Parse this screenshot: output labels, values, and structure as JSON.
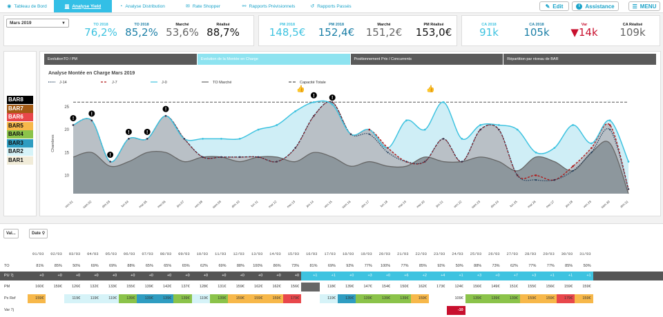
{
  "nav": {
    "items": [
      {
        "label": "Tableau de Bord",
        "icon": "dashboard-icon",
        "active": false
      },
      {
        "label": "Analyse Yield",
        "icon": "bar-chart-icon",
        "active": true
      },
      {
        "label": "Analyse Distribution",
        "icon": "pie-chart-icon",
        "active": false
      },
      {
        "label": "Rate Shopper",
        "icon": "ticket-icon",
        "active": false
      },
      {
        "label": "Rapports Prévisionnels",
        "icon": "binoculars-icon",
        "active": false
      },
      {
        "label": "Rapports Passés",
        "icon": "history-icon",
        "active": false
      }
    ],
    "edit_label": "Edit",
    "assist_label": "Assistance",
    "menu_label": "MENU"
  },
  "month_select": {
    "value": "Mars 2019"
  },
  "kpi_to": [
    {
      "label": "TO 2018",
      "value": "76,2%",
      "color": "cyan"
    },
    {
      "label": "TO 2018",
      "value": "85,2%",
      "color": "blue"
    },
    {
      "label": "Marché",
      "value": "53,6%",
      "color": "gray"
    },
    {
      "label": "Réalisé",
      "value": "88,7%",
      "color": "dark"
    }
  ],
  "kpi_pm": [
    {
      "label": "PM 2018",
      "value": "148,5€",
      "color": "cyan"
    },
    {
      "label": "PM 2018",
      "value": "152,4€",
      "color": "blue"
    },
    {
      "label": "Marché",
      "value": "151,2€",
      "color": "gray"
    },
    {
      "label": "PM Réalisé",
      "value": "153,0€",
      "color": "dark"
    }
  ],
  "kpi_ca": [
    {
      "label": "CA 2018",
      "value": "91k",
      "color": "cyan"
    },
    {
      "label": "CA 2018",
      "value": "105k",
      "color": "blue"
    },
    {
      "label": "Var",
      "value": "▼14k",
      "color": "red"
    },
    {
      "label": "CA Réalisé",
      "value": "109k",
      "color": "gray"
    }
  ],
  "bar_levels": [
    {
      "label": "BAR8",
      "color": "#000000",
      "text": "#ffffff"
    },
    {
      "label": "BAR7",
      "color": "#a35a14",
      "text": "#ffffff"
    },
    {
      "label": "BAR6",
      "color": "#e8474b",
      "text": "#ffffff"
    },
    {
      "label": "BAR5",
      "color": "#f7b84a",
      "text": "#111111"
    },
    {
      "label": "BAR4",
      "color": "#8bc34a",
      "text": "#111111"
    },
    {
      "label": "BAR3",
      "color": "#2f9dc1",
      "text": "#111111"
    },
    {
      "label": "BAR2",
      "color": "#d6f3f8",
      "text": "#111111"
    },
    {
      "label": "BAR1",
      "color": "#f1ecd9",
      "text": "#111111"
    }
  ],
  "tabs": [
    {
      "label": "EvolutionTO / PM",
      "active": false
    },
    {
      "label": "Evolution de la Montée en Charge",
      "active": true
    },
    {
      "label": "Positionnement Prix / Concurrents",
      "active": false
    },
    {
      "label": "Répartition par niveau de BAR",
      "active": false
    }
  ],
  "chart_data": {
    "type": "line",
    "title": "Analyse Montée en Charge Mars 2019",
    "ylabel": "Chambres",
    "xlabel": "",
    "ylim": [
      6,
      28
    ],
    "yticks": [
      10,
      15,
      20,
      25
    ],
    "capacity": 26,
    "categories": [
      "ven.01",
      "sam.02",
      "dim.03",
      "lun.04",
      "mar.05",
      "mer.06",
      "jeu.07",
      "ven.08",
      "sam.09",
      "dim.10",
      "lun.11",
      "mar.12",
      "mer.13",
      "jeu.14",
      "ven.15",
      "sam.16",
      "dim.17",
      "lun.18",
      "mar.19",
      "mer.20",
      "jeu.21",
      "ven.22",
      "sam.23",
      "dim.24",
      "lun.25",
      "mar.26",
      "mer.27",
      "jeu.28",
      "ven.29",
      "sam.30",
      "dim.31"
    ],
    "legend": [
      "J-14",
      "J-7",
      "J-0",
      "TO Marché",
      "Capacité Totale"
    ],
    "series": [
      {
        "name": "J-0",
        "values": [
          21,
          22,
          13,
          18,
          18,
          23,
          18,
          18,
          18,
          18,
          20,
          21,
          24,
          26,
          25.5,
          19,
          20,
          16,
          22,
          20,
          26,
          18,
          21,
          21,
          20,
          15,
          16,
          21,
          17,
          22,
          13
        ]
      },
      {
        "name": "J-7",
        "values": [
          21,
          22,
          13,
          18,
          18,
          23,
          18,
          14,
          14,
          14,
          14,
          13,
          16,
          23,
          26,
          19,
          20,
          16,
          13,
          13,
          18,
          13,
          20,
          20,
          10,
          10,
          9,
          12,
          16,
          21,
          7
        ]
      },
      {
        "name": "J-14",
        "values": [
          21,
          22,
          13,
          18,
          18,
          23,
          18,
          14,
          14,
          14,
          14,
          13,
          16,
          23,
          26,
          19,
          19,
          15,
          13,
          13,
          18,
          13,
          20,
          20,
          10,
          9,
          9,
          11,
          15,
          20,
          7
        ]
      },
      {
        "name": "TO Marché",
        "values": [
          14,
          15,
          12,
          13,
          15,
          15,
          13,
          14,
          14,
          13,
          14,
          14,
          13,
          15,
          14,
          12,
          13,
          12,
          12,
          14,
          13,
          13,
          14,
          13,
          11,
          14,
          13,
          11,
          15,
          17,
          6
        ]
      }
    ],
    "alerts": [
      "ven.01",
      "sam.02",
      "dim.03",
      "lun.04",
      "mar.05",
      "mer.06",
      "jeu.14",
      "ven.15"
    ],
    "thumbs": [
      "mer.13",
      "mer.20"
    ]
  },
  "table": {
    "btn_var": "Val...",
    "btn_date": "Date",
    "dates": [
      "01/03",
      "02/03",
      "03/03",
      "04/03",
      "05/03",
      "06/03",
      "07/03",
      "08/03",
      "09/03",
      "10/03",
      "11/03",
      "12/03",
      "13/03",
      "14/03",
      "15/03",
      "16/03",
      "17/03",
      "18/03",
      "19/03",
      "20/03",
      "21/03",
      "22/03",
      "23/03",
      "24/03",
      "25/03",
      "26/03",
      "27/03",
      "28/03",
      "29/03",
      "30/03",
      "31/03"
    ],
    "rows": [
      {
        "label": "TO",
        "values": [
          "81%",
          "85%",
          "50%",
          "69%",
          "69%",
          "88%",
          "65%",
          "65%",
          "65%",
          "62%",
          "69%",
          "88%",
          "100%",
          "86%",
          "73%",
          "81%",
          "69%",
          "92%",
          "77%",
          "100%",
          "77%",
          "85%",
          "92%",
          "50%",
          "88%",
          "73%",
          "62%",
          "77%",
          "77%",
          "85%",
          "50%"
        ]
      },
      {
        "label": "PU 7j",
        "values": [
          "+0",
          "+0",
          "+0",
          "+0",
          "+0",
          "+0",
          "+0",
          "+0",
          "+0",
          "+0",
          "+0",
          "+0",
          "+0",
          "+0",
          "+0",
          "+1",
          "+1",
          "+0",
          "+3",
          "+0",
          "+6",
          "+2",
          "+4",
          "+1",
          "+3",
          "+0",
          "+7",
          "+3",
          "+1",
          "+1",
          "+1"
        ]
      },
      {
        "label": "PM",
        "values": [
          "160€",
          "159€",
          "126€",
          "132€",
          "133€",
          "155€",
          "139€",
          "142€",
          "137€",
          "128€",
          "131€",
          "159€",
          "162€",
          "162€",
          "156€",
          "",
          "118€",
          "139€",
          "147€",
          "154€",
          "150€",
          "162€",
          "173€",
          "124€",
          "156€",
          "149€",
          "151€",
          "155€",
          "156€",
          "159€",
          "159€"
        ]
      },
      {
        "label": "Px Ref",
        "values": [
          "159€",
          "",
          "119€",
          "119€",
          "119€",
          "139€",
          "139€",
          "139€",
          "139€",
          "119€",
          "139€",
          "159€",
          "159€",
          "159€",
          "179€",
          "",
          "119€",
          "139€",
          "139€",
          "139€",
          "139€",
          "159€",
          "",
          "109€",
          "139€",
          "139€",
          "139€",
          "159€",
          "159€",
          "179€",
          "159€"
        ]
      },
      {
        "label": "Var 7j",
        "values": [
          "",
          "",
          "",
          "",
          "",
          "",
          "",
          "",
          "",
          "",
          "",
          "",
          "",
          "",
          "",
          "",
          "",
          "",
          "",
          "",
          "",
          "",
          "",
          "-10",
          "",
          "",
          "",
          "",
          "",
          "",
          ""
        ]
      }
    ]
  }
}
